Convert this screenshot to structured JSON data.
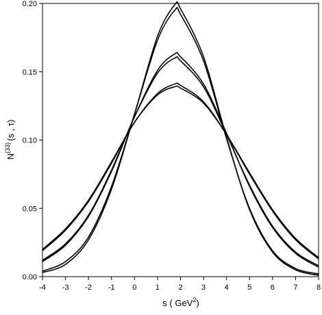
{
  "chart_data": {
    "type": "line",
    "xlabel": {
      "main": "s ( GeV",
      "sup": "2",
      "end": ")"
    },
    "ylabel": {
      "main": "N",
      "sup": "(33)",
      "end": "(s , τ)"
    },
    "xlim": [
      -4,
      8
    ],
    "ylim": [
      0,
      0.2
    ],
    "x_ticks": [
      -4,
      -3,
      -2,
      -1,
      0,
      1,
      2,
      3,
      4,
      5,
      6,
      7,
      8
    ],
    "x_tick_labels": [
      "-4",
      "-3",
      "-2",
      "-1",
      "0",
      "1",
      "2",
      "3",
      "4",
      "5",
      "6",
      "7",
      "8"
    ],
    "y_ticks": [
      0,
      0.05,
      0.1,
      0.15,
      0.2
    ],
    "y_tick_labels": [
      "0.00",
      "0.05",
      "0.10",
      "0.15",
      "0.20"
    ],
    "grid": false,
    "legend": "none",
    "line_color": "#000000",
    "series": [
      {
        "peak_x": 1.75,
        "peak_y": 0.199,
        "x": [
          -4,
          -3,
          -2,
          -1,
          0,
          1,
          1.75,
          2,
          3,
          4,
          5,
          6,
          7,
          8
        ],
        "y": [
          0.003,
          0.009,
          0.027,
          0.064,
          0.119,
          0.176,
          0.199,
          0.196,
          0.161,
          0.102,
          0.049,
          0.018,
          0.005,
          0.001
        ]
      },
      {
        "peak_x": 1.75,
        "peak_y": 0.195,
        "x": [
          -4,
          -3,
          -2,
          -1,
          0,
          1,
          1.75,
          2,
          3,
          4,
          5,
          6,
          7,
          8
        ],
        "y": [
          0.004,
          0.011,
          0.029,
          0.066,
          0.119,
          0.173,
          0.195,
          0.192,
          0.158,
          0.101,
          0.05,
          0.019,
          0.006,
          0.002
        ]
      },
      {
        "peak_x": 1.75,
        "peak_y": 0.163,
        "x": [
          -4,
          -3,
          -2,
          -1,
          0,
          1,
          1.75,
          2,
          3,
          4,
          5,
          6,
          7,
          8
        ],
        "y": [
          0.011,
          0.023,
          0.044,
          0.077,
          0.117,
          0.151,
          0.163,
          0.161,
          0.141,
          0.105,
          0.066,
          0.036,
          0.017,
          0.007
        ]
      },
      {
        "peak_x": 1.75,
        "peak_y": 0.16,
        "x": [
          -4,
          -3,
          -2,
          -1,
          0,
          1,
          1.75,
          2,
          3,
          4,
          5,
          6,
          7,
          8
        ],
        "y": [
          0.012,
          0.024,
          0.045,
          0.078,
          0.117,
          0.149,
          0.16,
          0.158,
          0.139,
          0.104,
          0.067,
          0.037,
          0.018,
          0.008
        ]
      },
      {
        "peak_x": 1.75,
        "peak_y": 0.141,
        "x": [
          -4,
          -3,
          -2,
          -1,
          0,
          1,
          1.75,
          2,
          3,
          4,
          5,
          6,
          7,
          8
        ],
        "y": [
          0.019,
          0.034,
          0.055,
          0.083,
          0.113,
          0.134,
          0.141,
          0.14,
          0.128,
          0.104,
          0.075,
          0.048,
          0.027,
          0.013
        ]
      },
      {
        "peak_x": 1.75,
        "peak_y": 0.139,
        "x": [
          -4,
          -3,
          -2,
          -1,
          0,
          1,
          1.75,
          2,
          3,
          4,
          5,
          6,
          7,
          8
        ],
        "y": [
          0.02,
          0.035,
          0.056,
          0.084,
          0.113,
          0.133,
          0.139,
          0.138,
          0.127,
          0.104,
          0.076,
          0.049,
          0.028,
          0.014
        ]
      }
    ]
  }
}
